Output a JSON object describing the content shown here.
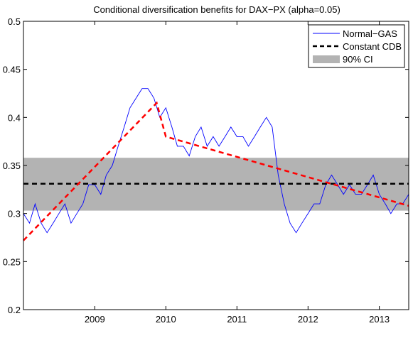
{
  "chart_data": {
    "type": "line",
    "title": "Conditional diversification benefits for DAX−PX (alpha=0.05)",
    "xlabel": "",
    "ylabel": "",
    "xlim": [
      "2008-01-01",
      "2013-06-01"
    ],
    "ylim": [
      0.2,
      0.5
    ],
    "x_ticks": [
      {
        "date": "2009-01-01",
        "label": "2009"
      },
      {
        "date": "2010-01-01",
        "label": "2010"
      },
      {
        "date": "2011-01-01",
        "label": "2011"
      },
      {
        "date": "2012-01-01",
        "label": "2012"
      },
      {
        "date": "2013-01-01",
        "label": "2013"
      }
    ],
    "y_ticks": [
      {
        "value": 0.2,
        "label": "0.2"
      },
      {
        "value": 0.25,
        "label": "0.25"
      },
      {
        "value": 0.3,
        "label": "0.3"
      },
      {
        "value": 0.35,
        "label": "0.35"
      },
      {
        "value": 0.4,
        "label": "0.4"
      },
      {
        "value": 0.45,
        "label": "0.45"
      },
      {
        "value": 0.5,
        "label": "0.5"
      }
    ],
    "grid": false,
    "legend_position": "top-right",
    "series": [
      {
        "name": "Normal−GAS",
        "color": "#0000ff",
        "style": "solid",
        "x": [
          "2008-01-01",
          "2008-02-01",
          "2008-03-01",
          "2008-04-01",
          "2008-05-01",
          "2008-06-01",
          "2008-07-01",
          "2008-08-01",
          "2008-09-01",
          "2008-10-01",
          "2008-11-01",
          "2008-12-01",
          "2009-01-01",
          "2009-02-01",
          "2009-03-01",
          "2009-04-01",
          "2009-05-01",
          "2009-06-01",
          "2009-07-01",
          "2009-08-01",
          "2009-09-01",
          "2009-10-01",
          "2009-11-01",
          "2009-12-01",
          "2010-01-01",
          "2010-02-01",
          "2010-03-01",
          "2010-04-01",
          "2010-05-01",
          "2010-06-01",
          "2010-07-01",
          "2010-08-01",
          "2010-09-01",
          "2010-10-01",
          "2010-11-01",
          "2010-12-01",
          "2011-01-01",
          "2011-02-01",
          "2011-03-01",
          "2011-04-01",
          "2011-05-01",
          "2011-06-01",
          "2011-07-01",
          "2011-08-01",
          "2011-09-01",
          "2011-10-01",
          "2011-11-01",
          "2011-12-01",
          "2012-01-01",
          "2012-02-01",
          "2012-03-01",
          "2012-04-01",
          "2012-05-01",
          "2012-06-01",
          "2012-07-01",
          "2012-08-01",
          "2012-09-01",
          "2012-10-01",
          "2012-11-01",
          "2012-12-01",
          "2013-01-01",
          "2013-02-01",
          "2013-03-01",
          "2013-04-01",
          "2013-05-01",
          "2013-06-01"
        ],
        "values": [
          0.3,
          0.29,
          0.31,
          0.29,
          0.28,
          0.29,
          0.3,
          0.31,
          0.29,
          0.3,
          0.31,
          0.33,
          0.33,
          0.32,
          0.34,
          0.35,
          0.37,
          0.39,
          0.41,
          0.42,
          0.43,
          0.43,
          0.42,
          0.4,
          0.41,
          0.39,
          0.37,
          0.37,
          0.36,
          0.38,
          0.39,
          0.37,
          0.38,
          0.37,
          0.38,
          0.39,
          0.38,
          0.38,
          0.37,
          0.38,
          0.39,
          0.4,
          0.39,
          0.34,
          0.31,
          0.29,
          0.28,
          0.29,
          0.3,
          0.31,
          0.31,
          0.33,
          0.34,
          0.33,
          0.32,
          0.33,
          0.32,
          0.32,
          0.33,
          0.34,
          0.32,
          0.31,
          0.3,
          0.31,
          0.31,
          0.32
        ]
      },
      {
        "name": "Constant CDB",
        "color": "#000000",
        "style": "dashed",
        "x": [
          "2008-01-01",
          "2013-06-01"
        ],
        "values": [
          0.331,
          0.331
        ]
      },
      {
        "name": "",
        "color": "#ff0000",
        "style": "dashed",
        "x": [
          "2008-01-01",
          "2009-11-15",
          "2010-01-01",
          "2013-06-01"
        ],
        "values": [
          0.272,
          0.415,
          0.38,
          0.308
        ]
      }
    ],
    "band": {
      "name": "90% CI",
      "color": "#b3b3b3",
      "x": [
        "2008-01-01",
        "2013-06-01"
      ],
      "lower": 0.303,
      "upper": 0.358
    }
  }
}
